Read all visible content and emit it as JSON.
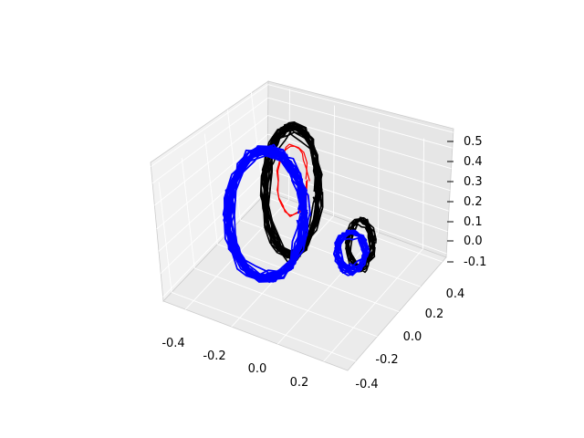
{
  "chart_data": {
    "type": "line3d",
    "title": "",
    "xlabel": "",
    "ylabel": "",
    "zlabel": "",
    "xlim": [
      -0.5,
      0.3
    ],
    "ylim": [
      -0.45,
      0.5
    ],
    "zlim": [
      -0.12,
      0.55
    ],
    "x_ticks": [
      "-0.4",
      "-0.2",
      "0.0",
      "0.2"
    ],
    "y_ticks": [
      "-0.4",
      "-0.2",
      "0.0",
      "0.2",
      "0.4"
    ],
    "z_ticks": [
      "-0.1",
      "0.0",
      "0.1",
      "0.2",
      "0.3",
      "0.4",
      "0.5"
    ],
    "grid": true,
    "series": [
      {
        "color": "#000000",
        "description_loops": [
          "large black loop",
          "small black loop"
        ]
      },
      {
        "color": "#ff0000"
      },
      {
        "color": "#0000ff"
      }
    ]
  }
}
